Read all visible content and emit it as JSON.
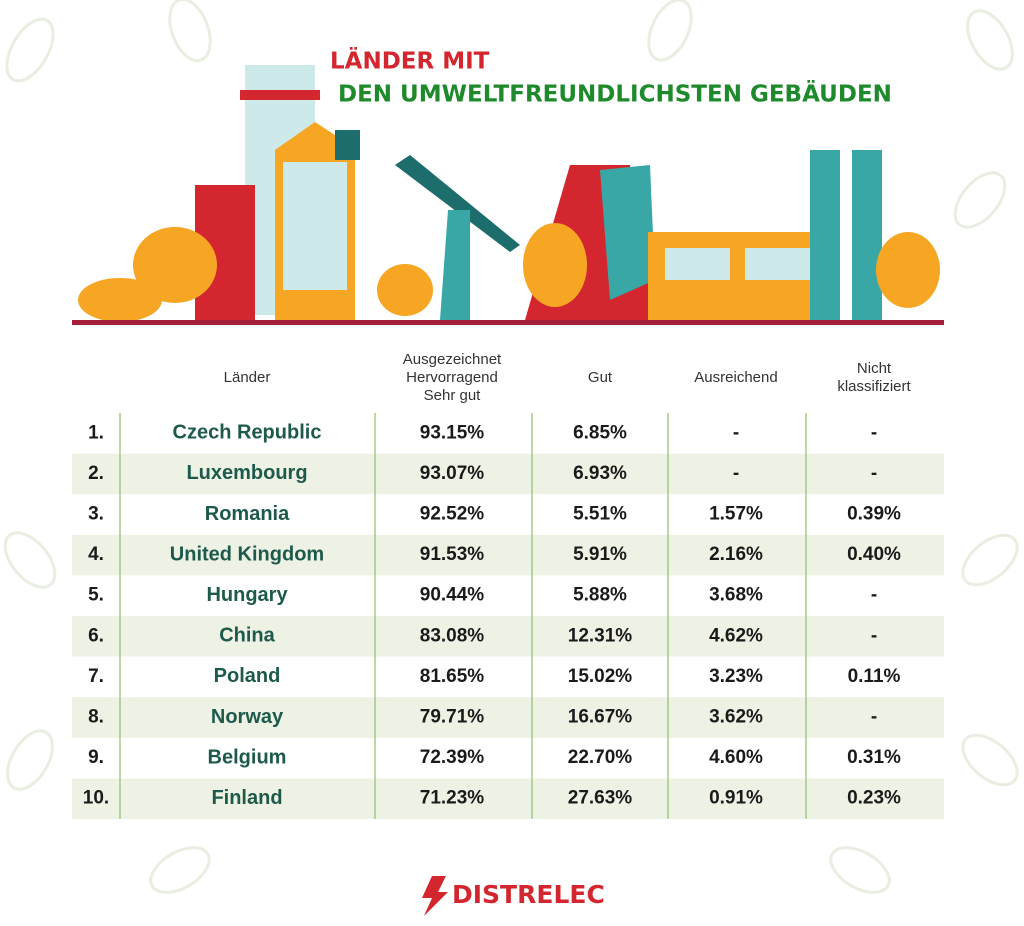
{
  "header": {
    "title_line1": "LÄNDER MIT",
    "title_line2": "DEN UMWELTFREUNDLICHSTEN GEBÄUDEN"
  },
  "table": {
    "columns": [
      [
        "Länder"
      ],
      [
        "Ausgezeichnet",
        "Hervorragend",
        "Sehr gut"
      ],
      [
        "Gut"
      ],
      [
        "Ausreichend"
      ],
      [
        "Nicht",
        "klassifiziert"
      ]
    ],
    "rows": [
      [
        "1.",
        "Czech Republic",
        "93.15%",
        "6.85%",
        "-",
        "-"
      ],
      [
        "2.",
        "Luxembourg",
        "93.07%",
        "6.93%",
        "-",
        "-"
      ],
      [
        "3.",
        "Romania",
        "92.52%",
        "5.51%",
        "1.57%",
        "0.39%"
      ],
      [
        "4.",
        "United Kingdom",
        "91.53%",
        "5.91%",
        "2.16%",
        "0.40%"
      ],
      [
        "5.",
        "Hungary",
        "90.44%",
        "5.88%",
        "3.68%",
        "-"
      ],
      [
        "6.",
        "China",
        "83.08%",
        "12.31%",
        "4.62%",
        "-"
      ],
      [
        "7.",
        "Poland",
        "81.65%",
        "15.02%",
        "3.23%",
        "0.11%"
      ],
      [
        "8.",
        "Norway",
        "79.71%",
        "16.67%",
        "3.62%",
        "-"
      ],
      [
        "9.",
        "Belgium",
        "72.39%",
        "22.70%",
        "4.60%",
        "0.31%"
      ],
      [
        "10.",
        "Finland",
        "71.23%",
        "27.63%",
        "0.91%",
        "0.23%"
      ]
    ]
  },
  "logo": "DISTRELEC"
}
